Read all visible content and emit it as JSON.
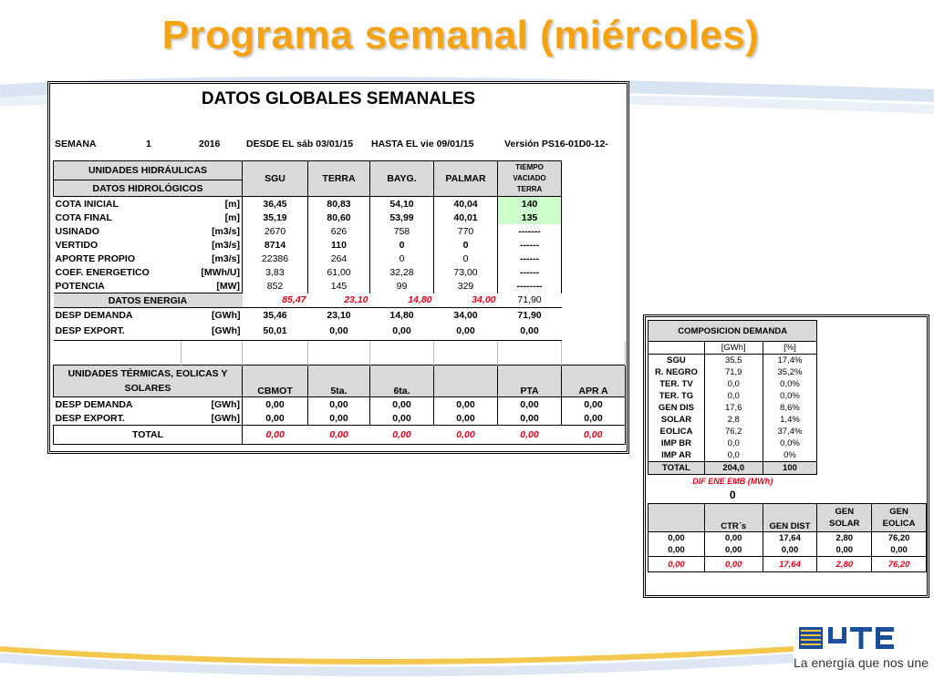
{
  "slide": {
    "title": "Programa semanal (miércoles)"
  },
  "main": {
    "title": "DATOS GLOBALES SEMANALES",
    "semana": {
      "label": "SEMANA",
      "num": "1",
      "year": "2016",
      "desde": "DESDE EL sáb 03/01/15",
      "hasta": "HASTA EL  vie 09/01/15",
      "version": "Versión  PS16-01D0-12-"
    },
    "hydro_header": {
      "line1": "UNIDADES HIDRÁULICAS",
      "line2": "DATOS HIDROLÓGICOS",
      "cols": [
        "SGU",
        "TERRA",
        "BAYG.",
        "PALMAR"
      ],
      "tiempo": [
        "TIEMPO",
        "VACIADO",
        "TERRA"
      ]
    },
    "hydro_rows": [
      {
        "label": "COTA INICIAL",
        "unit": "[m]",
        "vals": [
          "36,45",
          "80,83",
          "54,10",
          "40,04"
        ],
        "extra": "140"
      },
      {
        "label": "COTA FINAL",
        "unit": "[m]",
        "vals": [
          "35,19",
          "80,60",
          "53,99",
          "40,01"
        ],
        "extra": "135"
      },
      {
        "label": "USINADO",
        "unit": "[m3/s]",
        "vals": [
          "2670",
          "626",
          "758",
          "770"
        ],
        "extra": "-------"
      },
      {
        "label": "VERTIDO",
        "unit": "[m3/s]",
        "vals": [
          "8714",
          "110",
          "0",
          "0"
        ],
        "extra": "------"
      },
      {
        "label": "APORTE PROPIO",
        "unit": "[m3/s]",
        "vals": [
          "22386",
          "264",
          "0",
          "0"
        ],
        "extra": "------"
      },
      {
        "label": "COEF. ENERGETICO",
        "unit": "[MWh/U]",
        "vals": [
          "3,83",
          "61,00",
          "32,28",
          "73,00"
        ],
        "extra": "------"
      },
      {
        "label": "POTENCIA",
        "unit": "[MW]",
        "vals": [
          "852",
          "145",
          "99",
          "329"
        ],
        "extra": "--------"
      }
    ],
    "energia": {
      "label": "DATOS ENERGIA",
      "vals": [
        "85,47",
        "23,10",
        "14,80",
        "34,00"
      ],
      "extra": "71,90"
    },
    "desp_demanda": {
      "label": "DESP DEMANDA",
      "unit": "[GWh]",
      "vals": [
        "35,46",
        "23,10",
        "14,80",
        "34,00"
      ],
      "extra": "71,90"
    },
    "desp_export": {
      "label": "DESP EXPORT.",
      "unit": "[GWh]",
      "vals": [
        "50,01",
        "0,00",
        "0,00",
        "0,00"
      ],
      "extra": "0,00"
    },
    "thermal_header": {
      "line1": "UNIDADES TÉRMICAS, EOLICAS Y",
      "line2": "SOLARES",
      "cols": [
        "CBMOT",
        "5ta.",
        "6ta.",
        "",
        "PTA",
        "APR A"
      ]
    },
    "thermal_rows": [
      {
        "label": "DESP DEMANDA",
        "unit": "[GWh]",
        "vals": [
          "0,00",
          "0,00",
          "0,00",
          "0,00",
          "0,00",
          "0,00"
        ]
      },
      {
        "label": "DESP EXPORT.",
        "unit": "[GWh]",
        "vals": [
          "0,00",
          "0,00",
          "0,00",
          "0,00",
          "0,00",
          "0,00"
        ]
      }
    ],
    "total": {
      "label": "TOTAL",
      "vals": [
        "0,00",
        "0,00",
        "0,00",
        "0,00",
        "0,00",
        "0,00"
      ]
    }
  },
  "side": {
    "title": "COMPOSICION DEMANDA",
    "units": [
      "[GWh]",
      "[%]"
    ],
    "rows": [
      {
        "label": "SGU",
        "gwh": "35,5",
        "pct": "17,4%"
      },
      {
        "label": "R. NEGRO",
        "gwh": "71,9",
        "pct": "35,2%"
      },
      {
        "label": "TER. TV",
        "gwh": "0,0",
        "pct": "0,0%"
      },
      {
        "label": "TER. TG",
        "gwh": "0,0",
        "pct": "0,0%"
      },
      {
        "label": "GEN DIS",
        "gwh": "17,6",
        "pct": "8,6%"
      },
      {
        "label": "SOLAR",
        "gwh": "2,8",
        "pct": "1,4%"
      },
      {
        "label": "EOLICA",
        "gwh": "76,2",
        "pct": "37,4%"
      },
      {
        "label": "IMP BR",
        "gwh": "0,0",
        "pct": "0,0%"
      },
      {
        "label": "IMP AR",
        "gwh": "0,0",
        "pct": "0%"
      }
    ],
    "total": {
      "label": "TOTAL",
      "gwh": "204,0",
      "pct": "100"
    },
    "dif_label": "DIF ENE EMB (MWh)",
    "dif_value": "0",
    "gen_header": [
      "",
      "CTR´s",
      "GEN DIST",
      "GEN SOLAR",
      "GEN EOLICA"
    ],
    "gen_rows": [
      [
        "0,00",
        "0,00",
        "17,64",
        "2,80",
        "76,20"
      ],
      [
        "0,00",
        "0,00",
        "0,00",
        "0,00",
        "0,00"
      ]
    ],
    "gen_total": [
      "0,00",
      "0,00",
      "17,64",
      "2,80",
      "76,20"
    ]
  },
  "brand": {
    "logo": "UTE",
    "slogan": "La energía que nos une"
  },
  "colors": {
    "title": "#f5a313",
    "red": "#e0001a",
    "green": "#ccffcc",
    "header_gray": "#d9d9d9"
  }
}
